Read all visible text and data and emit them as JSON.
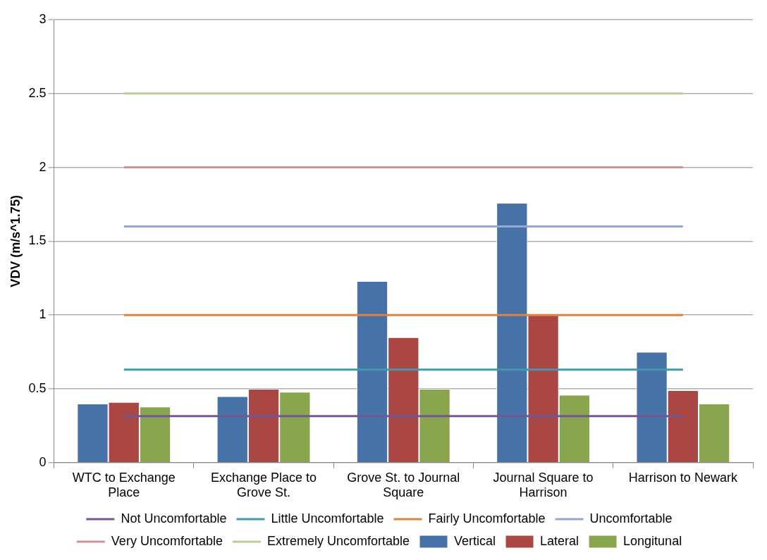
{
  "chart_data": {
    "type": "bar",
    "ylabel": "VDV (m/s^1.75)",
    "categories": [
      "WTC to Exchange Place",
      "Exchange Place to Grove St.",
      "Grove St. to Journal Square",
      "Journal Square to Harrison",
      "Harrison to Newark"
    ],
    "series": [
      {
        "name": "Vertical",
        "color": "#4672a8",
        "values": [
          0.4,
          0.45,
          1.23,
          1.76,
          0.75
        ]
      },
      {
        "name": "Lateral",
        "color": "#aa4744",
        "values": [
          0.41,
          0.5,
          0.85,
          1.0,
          0.49
        ]
      },
      {
        "name": "Longitunal",
        "color": "#89a54e",
        "values": [
          0.38,
          0.48,
          0.5,
          0.46,
          0.4
        ]
      },
      {
        "name": "Not Uncomfortable",
        "type": "line",
        "color": "#71588f",
        "values": [
          0.315,
          0.315,
          0.315,
          0.315,
          0.315
        ]
      },
      {
        "name": "Little Uncomfortable",
        "type": "line",
        "color": "#4198af",
        "values": [
          0.63,
          0.63,
          0.63,
          0.63,
          0.63
        ]
      },
      {
        "name": "Fairly Uncomfortable",
        "type": "line",
        "color": "#db843d",
        "values": [
          1,
          1,
          1,
          1,
          1
        ]
      },
      {
        "name": "Uncomfortable",
        "type": "line",
        "color": "#93a9cf",
        "values": [
          1.6,
          1.6,
          1.6,
          1.6,
          1.6
        ]
      },
      {
        "name": "Very Uncomfortable",
        "type": "line",
        "color": "#d19392",
        "values": [
          2,
          2,
          2,
          2,
          2
        ]
      },
      {
        "name": "Extremely Uncomfortable",
        "type": "line",
        "color": "#b9cd96",
        "values": [
          2.5,
          2.5,
          2.5,
          2.5,
          2.5
        ]
      }
    ],
    "ylim": [
      0,
      3
    ],
    "yticks": [
      0,
      0.5,
      1,
      1.5,
      2,
      2.5,
      3
    ],
    "grid": "y",
    "legend": "bottom",
    "marker": "none",
    "line_style": "solid"
  }
}
